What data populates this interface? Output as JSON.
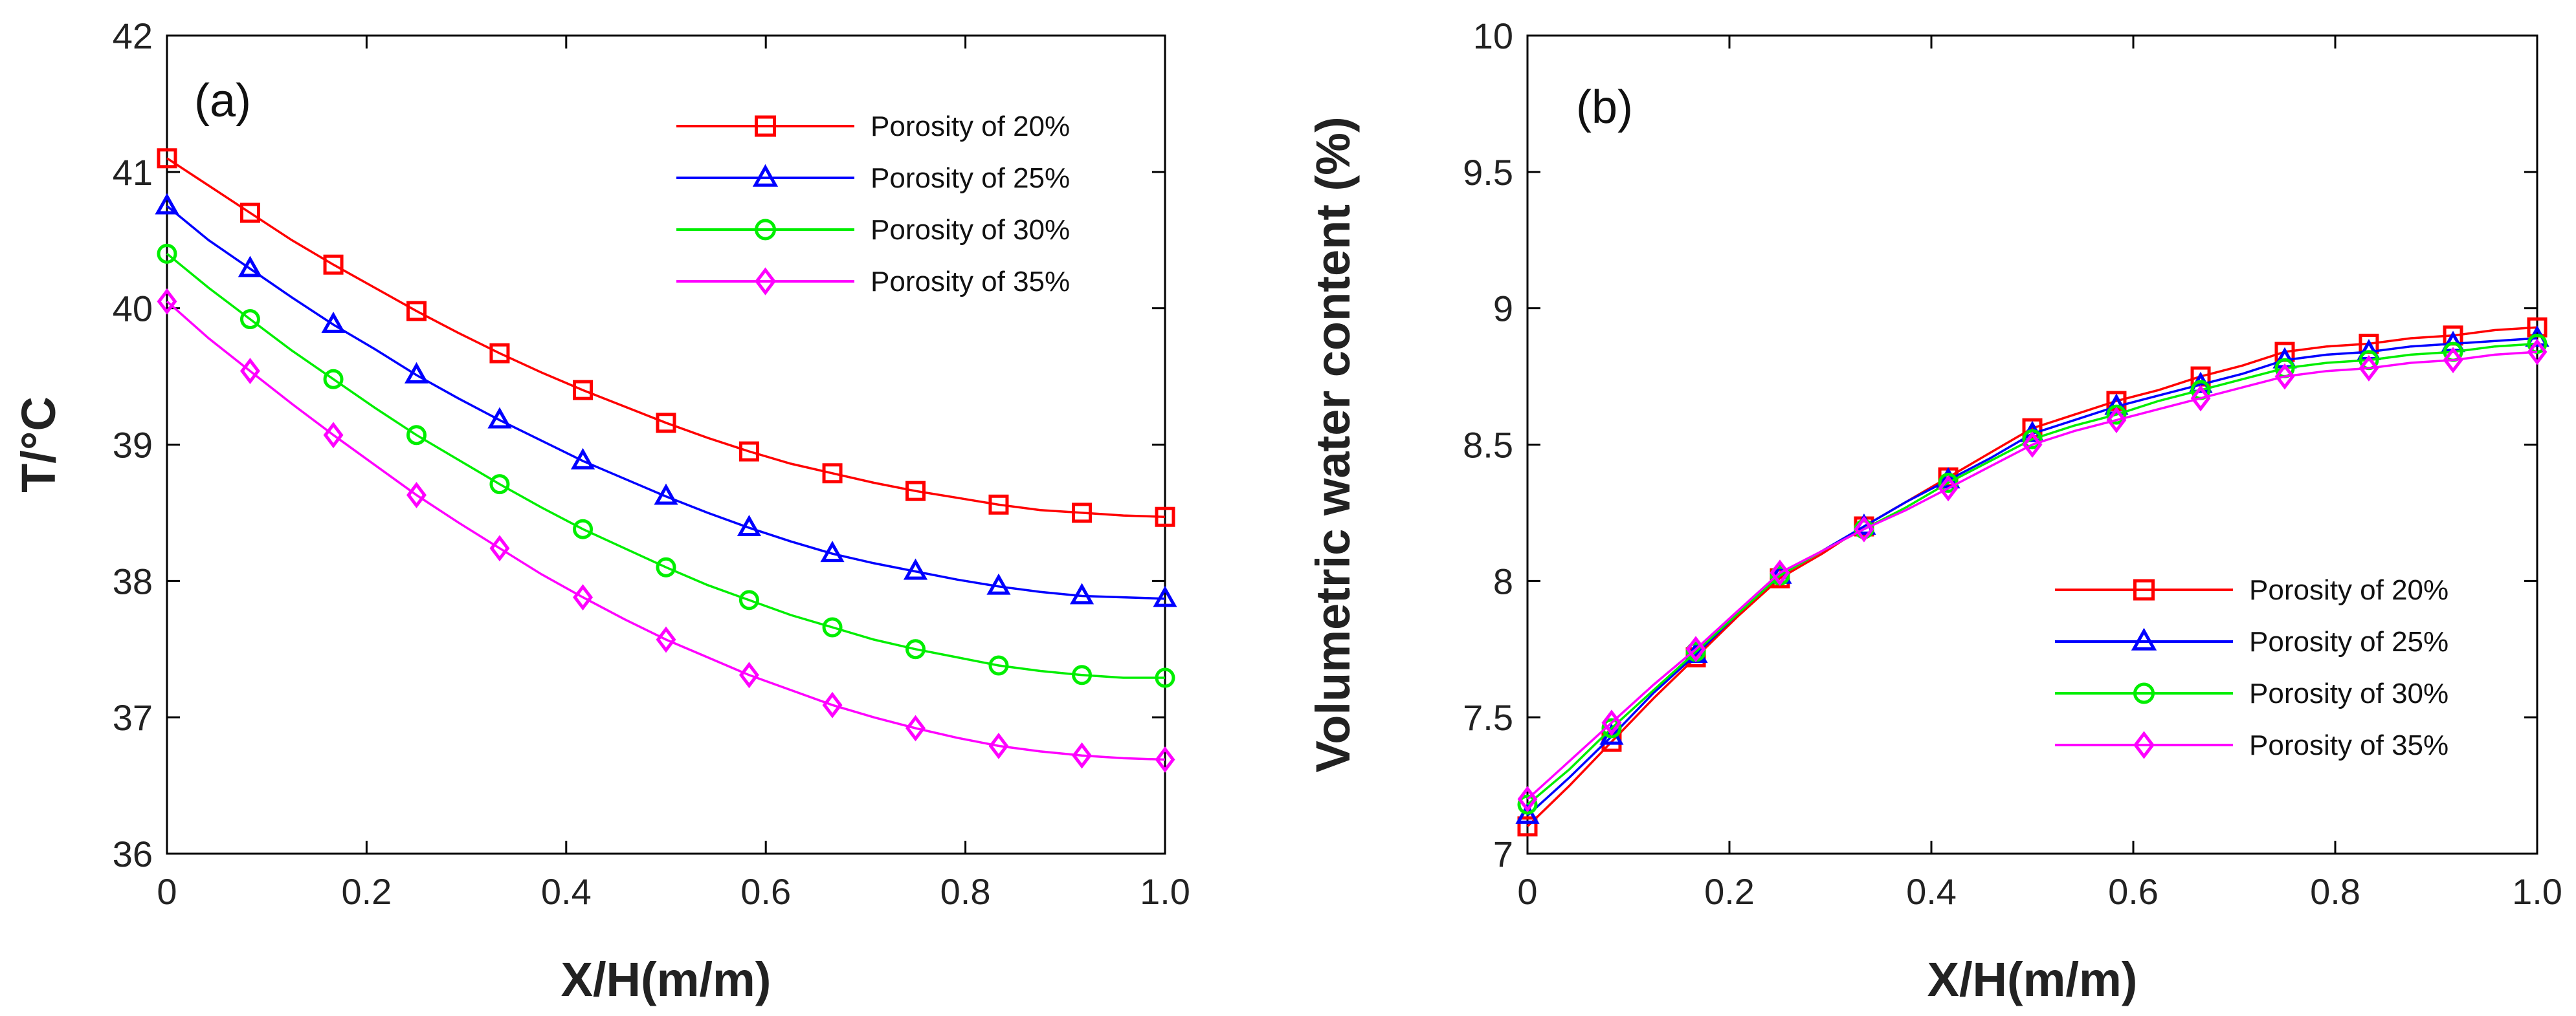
{
  "chart_data": [
    {
      "type": "line",
      "panel_label": "(a)",
      "xlabel": "X/H(m/m)",
      "ylabel": "T/°C",
      "xlim": [
        0,
        1.0
      ],
      "ylim": [
        36,
        42
      ],
      "xticks": [
        "0",
        "0.2",
        "0.4",
        "0.6",
        "0.8",
        "1.0"
      ],
      "yticks": [
        "36",
        "37",
        "38",
        "39",
        "40",
        "41",
        "42"
      ],
      "grid": false,
      "legend_position": "top-right",
      "x": [
        0,
        0.0417,
        0.0833,
        0.125,
        0.1667,
        0.2083,
        0.25,
        0.2917,
        0.3333,
        0.375,
        0.4167,
        0.4583,
        0.5,
        0.5417,
        0.5833,
        0.625,
        0.6667,
        0.7083,
        0.75,
        0.7917,
        0.8333,
        0.875,
        0.9167,
        0.9583,
        1.0
      ],
      "series": [
        {
          "name": "Porosity of 20%",
          "color": "#ff0000",
          "marker": "square",
          "values": [
            41.1,
            40.9,
            40.7,
            40.5,
            40.32,
            40.15,
            39.98,
            39.82,
            39.67,
            39.53,
            39.4,
            39.28,
            39.16,
            39.05,
            38.95,
            38.86,
            38.79,
            38.72,
            38.66,
            38.61,
            38.56,
            38.52,
            38.5,
            38.48,
            38.47
          ]
        },
        {
          "name": "Porosity of 25%",
          "color": "#0000ff",
          "marker": "triangle",
          "values": [
            40.75,
            40.5,
            40.29,
            40.08,
            39.88,
            39.7,
            39.51,
            39.34,
            39.18,
            39.03,
            38.88,
            38.75,
            38.62,
            38.5,
            38.39,
            38.29,
            38.2,
            38.13,
            38.07,
            38.01,
            37.96,
            37.92,
            37.89,
            37.88,
            37.87
          ]
        },
        {
          "name": "Porosity of 30%",
          "color": "#00ee00",
          "marker": "circle",
          "values": [
            40.4,
            40.15,
            39.92,
            39.69,
            39.48,
            39.27,
            39.07,
            38.89,
            38.71,
            38.54,
            38.38,
            38.24,
            38.1,
            37.97,
            37.86,
            37.75,
            37.66,
            37.57,
            37.5,
            37.44,
            37.38,
            37.34,
            37.31,
            37.29,
            37.29
          ]
        },
        {
          "name": "Porosity of 35%",
          "color": "#ff00ff",
          "marker": "diamond",
          "values": [
            40.05,
            39.78,
            39.54,
            39.3,
            39.07,
            38.85,
            38.63,
            38.43,
            38.24,
            38.05,
            37.88,
            37.72,
            37.57,
            37.44,
            37.31,
            37.2,
            37.09,
            37.0,
            36.92,
            36.85,
            36.79,
            36.75,
            36.72,
            36.7,
            36.69
          ]
        }
      ]
    },
    {
      "type": "line",
      "panel_label": "(b)",
      "xlabel": "X/H(m/m)",
      "ylabel": "Volumetric water content (%)",
      "xlim": [
        0,
        1.0
      ],
      "ylim": [
        7,
        10
      ],
      "xticks": [
        "0",
        "0.2",
        "0.4",
        "0.6",
        "0.8",
        "1.0"
      ],
      "yticks": [
        "7",
        "7.5",
        "8",
        "8.5",
        "9",
        "9.5",
        "10"
      ],
      "grid": false,
      "legend_position": "right",
      "x": [
        0,
        0.0417,
        0.0833,
        0.125,
        0.1667,
        0.2083,
        0.25,
        0.2917,
        0.3333,
        0.375,
        0.4167,
        0.4583,
        0.5,
        0.5417,
        0.5833,
        0.625,
        0.6667,
        0.7083,
        0.75,
        0.7917,
        0.8333,
        0.875,
        0.9167,
        0.9583,
        1.0
      ],
      "series": [
        {
          "name": "Porosity of 20%",
          "color": "#ff0000",
          "marker": "square",
          "values": [
            7.1,
            7.25,
            7.41,
            7.57,
            7.72,
            7.87,
            8.01,
            8.1,
            8.2,
            8.29,
            8.38,
            8.47,
            8.56,
            8.61,
            8.66,
            8.7,
            8.75,
            8.79,
            8.84,
            8.86,
            8.87,
            8.89,
            8.9,
            8.92,
            8.93
          ]
        },
        {
          "name": "Porosity of 25%",
          "color": "#0000ff",
          "marker": "triangle",
          "values": [
            7.14,
            7.28,
            7.43,
            7.59,
            7.73,
            7.88,
            8.02,
            8.11,
            8.2,
            8.29,
            8.37,
            8.45,
            8.54,
            8.59,
            8.64,
            8.68,
            8.72,
            8.76,
            8.81,
            8.83,
            8.84,
            8.86,
            8.87,
            8.88,
            8.89
          ]
        },
        {
          "name": "Porosity of 30%",
          "color": "#00ee00",
          "marker": "circle",
          "values": [
            7.18,
            7.31,
            7.46,
            7.6,
            7.74,
            7.88,
            8.02,
            8.11,
            8.19,
            8.27,
            8.36,
            8.44,
            8.52,
            8.57,
            8.61,
            8.66,
            8.7,
            8.74,
            8.78,
            8.8,
            8.81,
            8.83,
            8.84,
            8.86,
            8.87
          ]
        },
        {
          "name": "Porosity of 35%",
          "color": "#ff00ff",
          "marker": "diamond",
          "values": [
            7.2,
            7.34,
            7.48,
            7.62,
            7.75,
            7.89,
            8.03,
            8.11,
            8.19,
            8.26,
            8.34,
            8.42,
            8.5,
            8.55,
            8.59,
            8.63,
            8.67,
            8.71,
            8.75,
            8.77,
            8.78,
            8.8,
            8.81,
            8.83,
            8.84
          ]
        }
      ]
    }
  ]
}
